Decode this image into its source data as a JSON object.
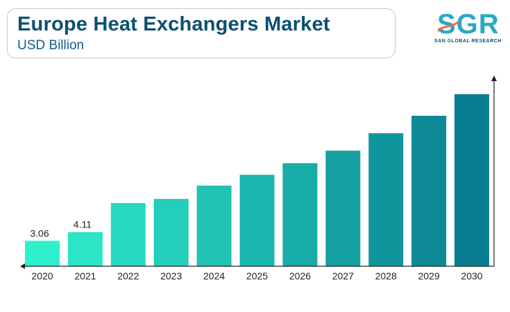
{
  "header": {
    "title": "Europe Heat Exchangers Market",
    "subtitle": "USD Billion"
  },
  "logo": {
    "text": "SGR",
    "tagline": "SAN GLOBAL RESEARCH"
  },
  "colors": {
    "title": "#0b4f72",
    "bar_start": "#2ef0cc",
    "bar_end": "#0a7e91",
    "axis": "#222222"
  },
  "chart_data": {
    "type": "bar",
    "title": "Europe Heat Exchangers Market",
    "ylabel": "USD Billion",
    "categories": [
      "2020",
      "2021",
      "2022",
      "2023",
      "2024",
      "2025",
      "2026",
      "2027",
      "2028",
      "2029",
      "2030"
    ],
    "values": [
      3.06,
      4.11,
      7.6,
      8.1,
      9.7,
      11.0,
      12.4,
      13.9,
      16.0,
      18.1,
      20.7
    ],
    "data_labels": [
      "3.06",
      "4.11",
      "",
      "",
      "",
      "",
      "",
      "",
      "",
      "",
      ""
    ],
    "ylim": [
      0,
      22.6
    ],
    "grid": false,
    "legend": "none"
  }
}
